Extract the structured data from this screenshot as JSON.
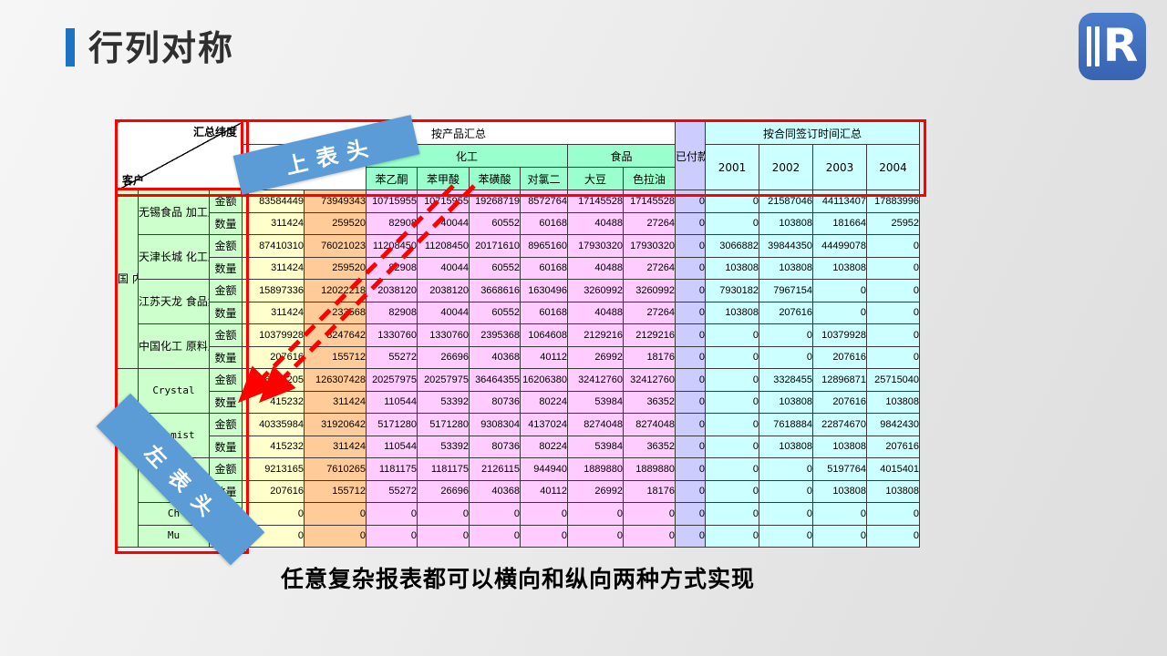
{
  "slide": {
    "title": "行列对称",
    "caption": "任意复杂报表都可以横向和纵向两种方式实现",
    "logo_letter": "R"
  },
  "annotations": {
    "top_header_ribbon": "上表头",
    "left_header_ribbon": "左表头"
  },
  "colors": {
    "annotation_red": "#ff0000",
    "ribbon_blue": "#5b9cd6",
    "title_accent_blue": "#1a73c4",
    "logo_blue": "#3d6dbe",
    "cell_yellow": "#ffffcc",
    "cell_peach": "#ffcc99",
    "cell_pink": "#ffccff",
    "cell_lavender": "#ccccff",
    "cell_cyan": "#ccffff",
    "cell_green": "#ccffcc",
    "header_green": "#99ffcc"
  },
  "table": {
    "corner": {
      "top_right": "汇总纬度",
      "bottom_left": "客户"
    },
    "header": {
      "product_group": "按产品汇总",
      "chemical_group": "化工",
      "food_group": "食品",
      "paid": "已付款",
      "time_group": "按合同签订时间汇总",
      "products": [
        "苯乙酮",
        "苯甲酸",
        "苯磺酸",
        "对氯二",
        "大豆",
        "色拉油"
      ],
      "years": [
        "2001",
        "2002",
        "2003",
        "2004"
      ]
    },
    "row_label_amount": "金额",
    "row_label_qty": "数量",
    "groups": [
      {
        "label": "国内客户",
        "companies": [
          {
            "name": "无锡食品加工厂",
            "lines": [
              "无锡食品",
              "加工厂"
            ],
            "amount": [
              83584449,
              73949343,
              10715955,
              10715955,
              19268719,
              8572764,
              17145528,
              17145528,
              0,
              0,
              21587046,
              44113407,
              17883996
            ],
            "qty": [
              311424,
              259520,
              82908,
              40044,
              60552,
              60168,
              40488,
              27264,
              0,
              0,
              103808,
              181664,
              25952
            ]
          },
          {
            "name": "天津长城化工厂",
            "lines": [
              "天津长城",
              "化工厂"
            ],
            "amount": [
              87410310,
              76021023,
              11208450,
              11208450,
              20171610,
              8965160,
              17930320,
              17930320,
              0,
              3066882,
              39844350,
              44499078,
              0
            ],
            "qty": [
              311424,
              259520,
              82908,
              40044,
              60552,
              60168,
              40488,
              27264,
              0,
              103808,
              103808,
              103808,
              0
            ]
          },
          {
            "name": "江苏天龙食品集团",
            "lines": [
              "江苏天龙",
              "食品集团"
            ],
            "amount": [
              15897336,
              12022218,
              2038120,
              2038120,
              3668616,
              1630496,
              3260992,
              3260992,
              0,
              7930182,
              7967154,
              0,
              0
            ],
            "qty": [
              311424,
              233568,
              82908,
              40044,
              60552,
              60168,
              40488,
              27264,
              0,
              103808,
              207616,
              0,
              0
            ]
          },
          {
            "name": "中国化工原料厂",
            "lines": [
              "中国化工",
              "原料厂"
            ],
            "amount": [
              10379928,
              8247642,
              1330760,
              1330760,
              2395368,
              1064608,
              2129216,
              2129216,
              0,
              0,
              0,
              10379928,
              0
            ],
            "qty": [
              207616,
              155712,
              55272,
              26696,
              40368,
              40112,
              26992,
              18176,
              0,
              0,
              0,
              207616,
              0
            ]
          }
        ]
      },
      {
        "label": "",
        "companies": [
          {
            "name": "Crystal",
            "lines": [
              "Crystal"
            ],
            "mono": true,
            "amount": [
              158012205,
              126307428,
              20257975,
              20257975,
              36464355,
              16206380,
              32412760,
              32412760,
              0,
              0,
              3328455,
              12896871,
              25715040
            ],
            "qty": [
              415232,
              311424,
              110544,
              53392,
              80736,
              80224,
              53984,
              36352,
              0,
              0,
              103808,
              207616,
              103808
            ]
          },
          {
            "name": "Chemist",
            "lines": [
              "Chemist"
            ],
            "mono": true,
            "amount": [
              40335984,
              31920642,
              5171280,
              5171280,
              9308304,
              4137024,
              8274048,
              8274048,
              0,
              0,
              7618884,
              22874670,
              9842430
            ],
            "qty": [
              415232,
              311424,
              110544,
              53392,
              80736,
              80224,
              53984,
              36352,
              0,
              0,
              103808,
              103808,
              207616
            ]
          },
          {
            "name": "",
            "lines": [
              ""
            ],
            "amount": [
              9213165,
              7610265,
              1181175,
              1181175,
              2126115,
              944940,
              1889880,
              1889880,
              0,
              0,
              0,
              5197764,
              4015401
            ],
            "qty": [
              207616,
              155712,
              55272,
              26696,
              40368,
              40112,
              26992,
              18176,
              0,
              0,
              0,
              103808,
              103808
            ]
          },
          {
            "name": "Ch",
            "lines": [
              "Ch"
            ],
            "mono": true,
            "amount": [
              0,
              0,
              0,
              0,
              0,
              0,
              0,
              0,
              0,
              0,
              0,
              0,
              0
            ],
            "qty": null
          },
          {
            "name": "Mu",
            "lines": [
              "Mu"
            ],
            "mono": true,
            "amount": [
              0,
              0,
              0,
              0,
              0,
              0,
              0,
              0,
              0,
              0,
              0,
              0,
              0
            ],
            "qty": null
          }
        ]
      }
    ]
  }
}
